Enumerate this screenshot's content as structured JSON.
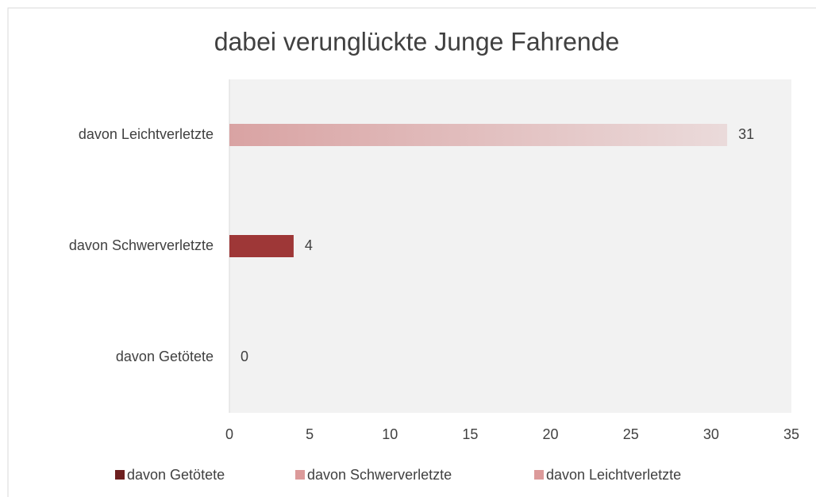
{
  "chart_data": {
    "type": "bar",
    "orientation": "horizontal",
    "title": "dabei verunglückte Junge Fahrende",
    "categories": [
      "davon Getötete",
      "davon Schwerverletzte",
      "davon Leichtverletzte"
    ],
    "series": [
      {
        "name": "davon Getötete",
        "color": "#6e2020",
        "legend_color": "#6e2020",
        "values": [
          0,
          null,
          null
        ]
      },
      {
        "name": "davon Schwerverletzte",
        "color": "#9e3737",
        "legend_color": "#dc9a9a",
        "values": [
          null,
          4,
          null
        ]
      },
      {
        "name": "davon Leichtverletzte",
        "color": "#d9a3a3",
        "legend_color": "#dc9a9a",
        "gradient": true,
        "values": [
          null,
          null,
          31
        ]
      }
    ],
    "xlim": [
      0,
      35
    ],
    "xticks": [
      0,
      5,
      10,
      15,
      20,
      25,
      30,
      35
    ],
    "legend": "bottom"
  }
}
